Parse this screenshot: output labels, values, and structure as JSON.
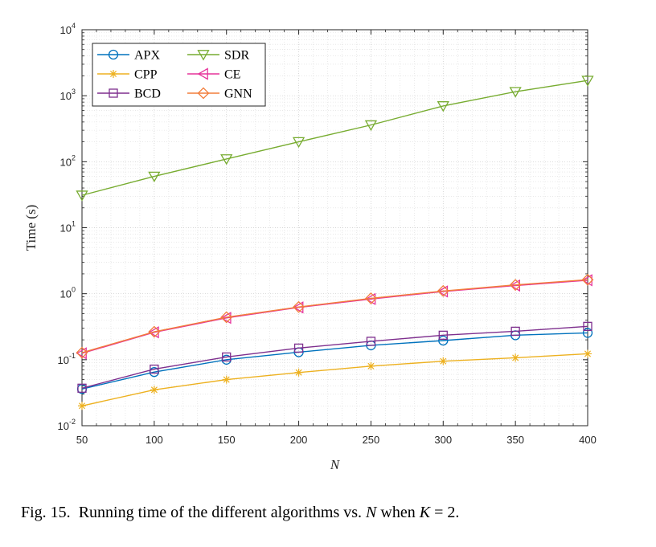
{
  "chart_data": {
    "type": "line",
    "yscale": "log",
    "xlabel": "N",
    "ylabel": "Time (s)",
    "xlim": [
      50,
      400
    ],
    "ylim": [
      0.01,
      10000
    ],
    "x": [
      50,
      100,
      150,
      200,
      250,
      300,
      350,
      400
    ],
    "xticks": [
      "50",
      "100",
      "150",
      "200",
      "250",
      "300",
      "350",
      "400"
    ],
    "yticks": [
      {
        "base": "10",
        "exp": "-2",
        "value": 0.01
      },
      {
        "base": "10",
        "exp": "-1",
        "value": 0.1
      },
      {
        "base": "10",
        "exp": "0",
        "value": 1
      },
      {
        "base": "10",
        "exp": "1",
        "value": 10
      },
      {
        "base": "10",
        "exp": "2",
        "value": 100
      },
      {
        "base": "10",
        "exp": "3",
        "value": 1000
      },
      {
        "base": "10",
        "exp": "4",
        "value": 10000
      }
    ],
    "grid": true,
    "legend_position": "top-left",
    "series": [
      {
        "name": "APX",
        "color": "#0072BD",
        "marker": "circle",
        "values": [
          0.036,
          0.065,
          0.1,
          0.13,
          0.165,
          0.195,
          0.235,
          0.255
        ]
      },
      {
        "name": "CPP",
        "color": "#EDB120",
        "marker": "asterisk",
        "values": [
          0.02,
          0.035,
          0.05,
          0.064,
          0.08,
          0.095,
          0.107,
          0.123
        ]
      },
      {
        "name": "BCD",
        "color": "#7E2F8E",
        "marker": "square",
        "values": [
          0.037,
          0.072,
          0.11,
          0.15,
          0.19,
          0.235,
          0.27,
          0.32
        ]
      },
      {
        "name": "SDR",
        "color": "#77AC30",
        "marker": "triangle-down",
        "values": [
          31,
          60,
          110,
          200,
          360,
          700,
          1150,
          1700
        ]
      },
      {
        "name": "CE",
        "color": "#E6339A",
        "marker": "triangle-left",
        "values": [
          0.125,
          0.26,
          0.43,
          0.62,
          0.83,
          1.08,
          1.33,
          1.6
        ]
      },
      {
        "name": "GNN",
        "color": "#F27D3A",
        "marker": "diamond",
        "values": [
          0.128,
          0.265,
          0.44,
          0.63,
          0.85,
          1.1,
          1.36,
          1.63
        ]
      }
    ]
  },
  "caption": {
    "prefix": "Fig. 15.",
    "text_a": "Running time of the different algorithms vs.",
    "var_n": "N",
    "text_b": "when",
    "var_k": "K",
    "eq": "=",
    "val": "2."
  }
}
